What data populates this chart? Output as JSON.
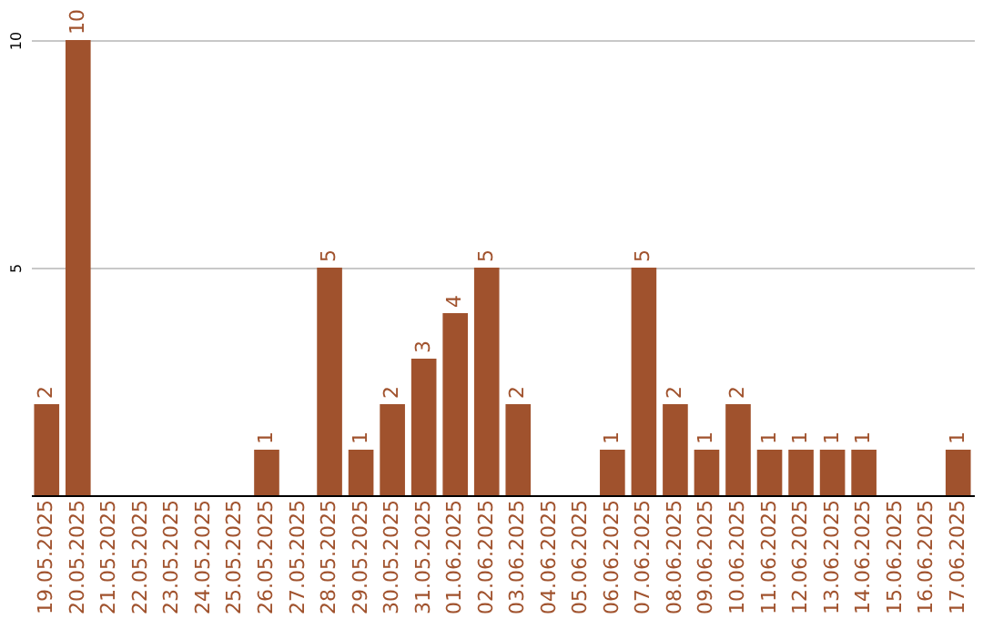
{
  "chart_data": {
    "type": "bar",
    "categories": [
      "19.05.2025",
      "20.05.2025",
      "21.05.2025",
      "22.05.2025",
      "23.05.2025",
      "24.05.2025",
      "25.05.2025",
      "26.05.2025",
      "27.05.2025",
      "28.05.2025",
      "29.05.2025",
      "30.05.2025",
      "31.05.2025",
      "01.06.2025",
      "02.06.2025",
      "03.06.2025",
      "04.06.2025",
      "05.06.2025",
      "06.06.2025",
      "07.06.2025",
      "08.06.2025",
      "09.06.2025",
      "10.06.2025",
      "11.06.2025",
      "12.06.2025",
      "13.06.2025",
      "14.06.2025",
      "15.06.2025",
      "16.06.2025",
      "17.06.2025"
    ],
    "values": [
      2,
      10,
      0,
      0,
      0,
      0,
      0,
      1,
      0,
      5,
      1,
      2,
      3,
      4,
      5,
      2,
      0,
      0,
      1,
      5,
      2,
      1,
      2,
      1,
      1,
      1,
      1,
      0,
      0,
      1
    ],
    "value_labels": [
      "2",
      "10",
      null,
      null,
      null,
      null,
      null,
      "1",
      null,
      "5",
      "1",
      "2",
      "3",
      "4",
      "5",
      "2",
      null,
      null,
      "1",
      "5",
      "2",
      "1",
      "2",
      "1",
      "1",
      "1",
      "1",
      null,
      null,
      "1"
    ],
    "color": "#a0522d",
    "ylim": [
      0,
      10
    ],
    "yticks": [
      5,
      10
    ],
    "grid": "y"
  }
}
